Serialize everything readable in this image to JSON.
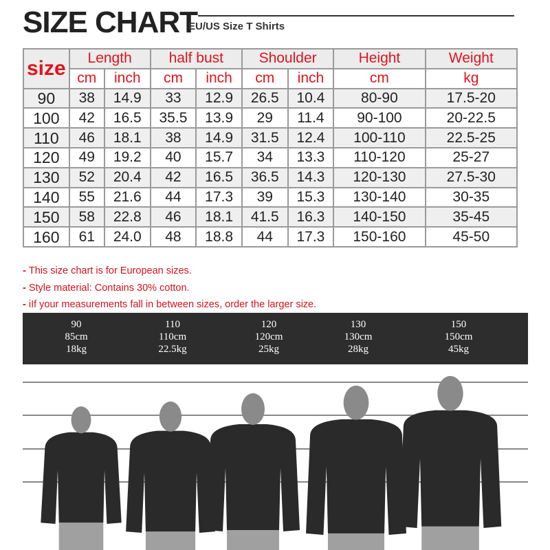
{
  "title": "SIZE CHART",
  "subtitle": "EU/US Size T Shirts",
  "table": {
    "size_label": "size",
    "groups": [
      "Length",
      "half bust",
      "Shoulder",
      "Height",
      "Weight"
    ],
    "units": [
      "cm",
      "inch",
      "cm",
      "inch",
      "cm",
      "inch",
      "cm",
      "kg"
    ],
    "rows": [
      [
        "90",
        "38",
        "14.9",
        "33",
        "12.9",
        "26.5",
        "10.4",
        "80-90",
        "17.5-20"
      ],
      [
        "100",
        "42",
        "16.5",
        "35.5",
        "13.9",
        "29",
        "11.4",
        "90-100",
        "20-22.5"
      ],
      [
        "110",
        "46",
        "18.1",
        "38",
        "14.9",
        "31.5",
        "12.4",
        "100-110",
        "22.5-25"
      ],
      [
        "120",
        "49",
        "19.2",
        "40",
        "15.7",
        "34",
        "13.3",
        "110-120",
        "25-27"
      ],
      [
        "130",
        "52",
        "20.4",
        "42",
        "16.5",
        "36.5",
        "14.3",
        "120-130",
        "27.5-30"
      ],
      [
        "140",
        "55",
        "21.6",
        "44",
        "17.3",
        "39",
        "15.3",
        "130-140",
        "30-35"
      ],
      [
        "150",
        "58",
        "22.8",
        "46",
        "18.1",
        "41.5",
        "16.3",
        "140-150",
        "35-45"
      ],
      [
        "160",
        "61",
        "24.0",
        "48",
        "18.8",
        "44",
        "17.3",
        "150-160",
        "45-50"
      ]
    ]
  },
  "notes": [
    "This size chart is for European sizes.",
    "Style material: Contains 30% cotton.",
    "iIf your measurements fall in between sizes, order the larger size."
  ],
  "models": [
    {
      "size": "90",
      "height": "85cm",
      "weight": "18kg"
    },
    {
      "size": "110",
      "height": "110cm",
      "weight": "22.5kg"
    },
    {
      "size": "120",
      "height": "120cm",
      "weight": "25kg"
    },
    {
      "size": "130",
      "height": "130cm",
      "weight": "28kg"
    },
    {
      "size": "150",
      "height": "150cm",
      "weight": "45kg"
    }
  ],
  "colors": {
    "accent": "#e0141c",
    "band": "#2d2d2d",
    "shirt": "#2a2a2a",
    "skin": "#8a8a8a"
  }
}
